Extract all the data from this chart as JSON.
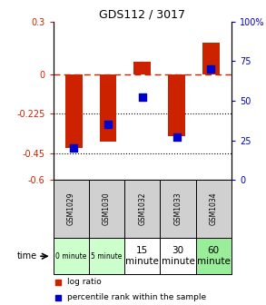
{
  "title": "GDS112 / 3017",
  "samples": [
    "GSM1029",
    "GSM1030",
    "GSM1032",
    "GSM1033",
    "GSM1034"
  ],
  "time_labels": [
    "0 minute",
    "5 minute",
    "15\nminute",
    "30\nminute",
    "60\nminute"
  ],
  "time_colors": [
    "#ccffcc",
    "#ccffcc",
    "#ffffff",
    "#ffffff",
    "#99ee99"
  ],
  "log_ratios": [
    -0.42,
    -0.38,
    0.07,
    -0.35,
    0.18
  ],
  "percentile_ranks": [
    20,
    35,
    52,
    27,
    70
  ],
  "ylim_left": [
    -0.6,
    0.3
  ],
  "ylim_right": [
    0,
    100
  ],
  "yticks_left": [
    0.3,
    0,
    -0.225,
    -0.45,
    -0.6
  ],
  "yticks_right": [
    100,
    75,
    50,
    25,
    0
  ],
  "left_color": "#cc2200",
  "right_color": "#0000cc",
  "bar_color": "#cc2200",
  "dot_color": "#0000cc",
  "bar_width": 0.5,
  "legend_bar_label": "log ratio",
  "legend_dot_label": "percentile rank within the sample",
  "sample_bg": "#d0d0d0",
  "fig_w": 2.93,
  "fig_h": 3.36
}
